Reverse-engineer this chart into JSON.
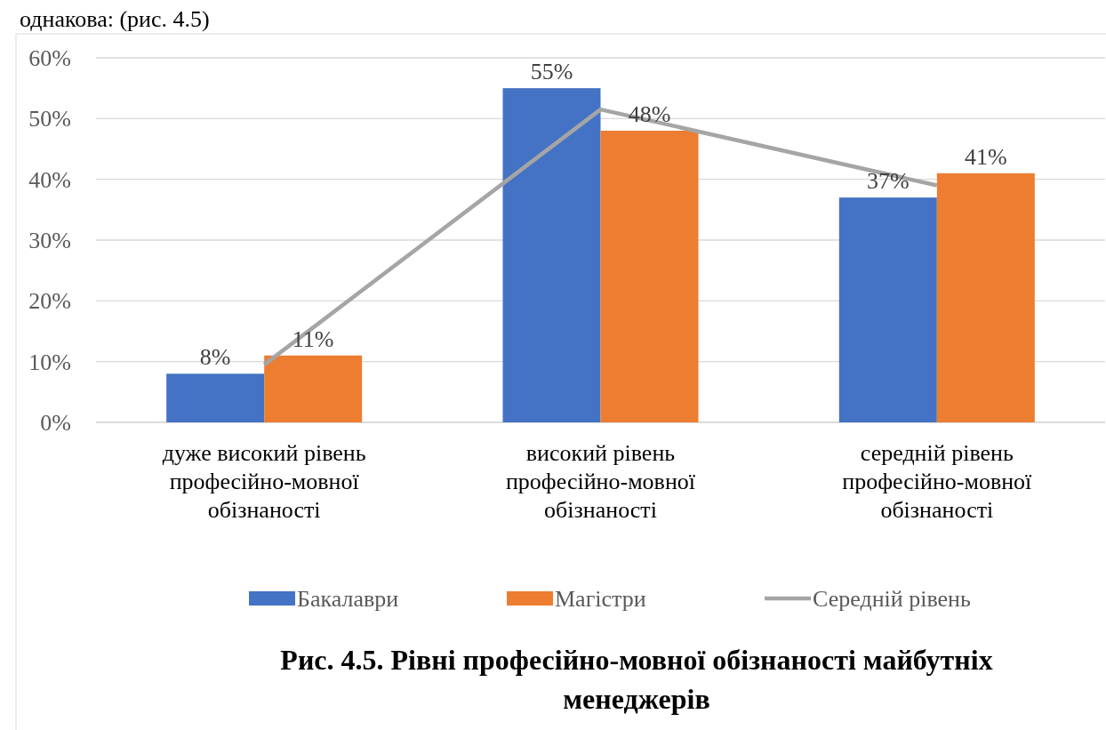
{
  "chart_data": {
    "type": "bar",
    "title": "Рис. 4.5. Рівні професійно-мовної обізнаності майбутніх менеджерів",
    "annotations": [
      "однакова: (рис. 4.5)"
    ],
    "categories": [
      "дуже високий рівень професійно-мовної обізнаності",
      "високий рівень професійно-мовної обізнаності",
      "середній рівень професійно-мовної обізнаності"
    ],
    "series": [
      {
        "name": "Бакалаври",
        "color": "#4472c4",
        "values": [
          8,
          55,
          37
        ],
        "value_labels": [
          "8%",
          "55%",
          "37%"
        ]
      },
      {
        "name": "Магістри",
        "color": "#ed7d31",
        "values": [
          11,
          48,
          41
        ],
        "value_labels": [
          "11%",
          "48%",
          "41%"
        ]
      },
      {
        "name": "Середній рівень",
        "type": "line",
        "color": "#a5a5a5",
        "values": [
          9.5,
          51.5,
          39
        ]
      }
    ],
    "ylim": [
      0,
      60
    ],
    "yticks": [
      {
        "value": 0,
        "label": "0%"
      },
      {
        "value": 10,
        "label": "10%"
      },
      {
        "value": 20,
        "label": "20%"
      },
      {
        "value": 30,
        "label": "30%"
      },
      {
        "value": 40,
        "label": "40%"
      },
      {
        "value": 50,
        "label": "50%"
      },
      {
        "value": 60,
        "label": "60%"
      }
    ],
    "grid": "y",
    "legend": "bottom",
    "marker": "none",
    "line_style": "solid"
  }
}
